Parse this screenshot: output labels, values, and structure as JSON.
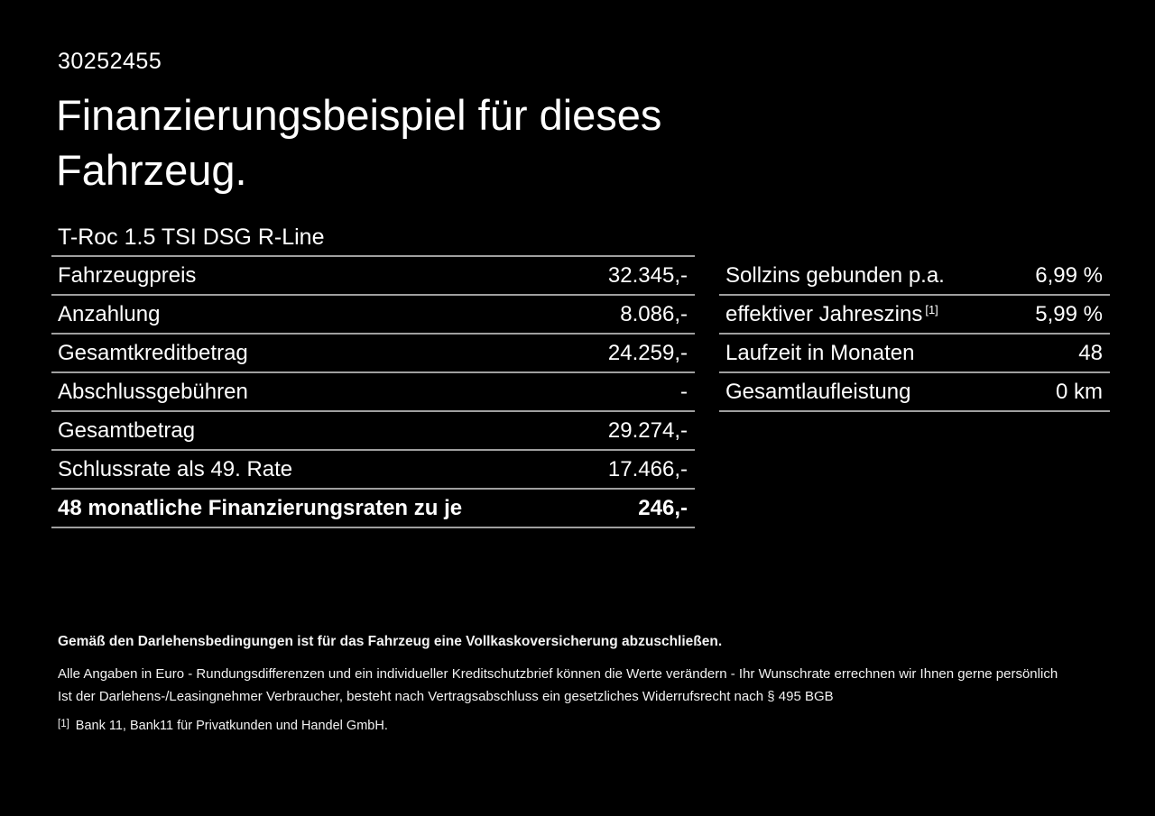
{
  "page": {
    "id_number": "30252455",
    "title_line1": "Finanzierungsbeispiel für dieses",
    "title_line2": "Fahrzeug.",
    "vehicle_model": "T-Roc 1.5 TSI DSG R-Line"
  },
  "finance_table": {
    "rows": [
      {
        "label": "Fahrzeugpreis",
        "value": "32.345,-"
      },
      {
        "label": "Anzahlung",
        "value": "8.086,-"
      },
      {
        "label": "Gesamtkreditbetrag",
        "value": "24.259,-"
      },
      {
        "label": "Abschlussgebühren",
        "value": "-"
      },
      {
        "label": "Gesamtbetrag",
        "value": "29.274,-"
      },
      {
        "label": "Schlussrate als 49. Rate",
        "value": "17.466,-"
      },
      {
        "label": "48 monatliche Finanzierungsraten zu je",
        "value": "246,-"
      }
    ]
  },
  "conditions_table": {
    "rows": [
      {
        "label": "Sollzins gebunden p.a.",
        "value": "6,99 %"
      },
      {
        "label": "effektiver Jahreszins",
        "footnote_marker": "[1]",
        "value": "5,99 %"
      },
      {
        "label": "Laufzeit in Monaten",
        "value": "48"
      },
      {
        "label": "Gesamtlaufleistung",
        "value": "0 km"
      }
    ]
  },
  "footer": {
    "bold_note": "Gemäß den Darlehensbedingungen ist für das Fahrzeug eine Vollkaskoversicherung abzuschließen.",
    "note_line1": "Alle Angaben in Euro - Rundungsdifferenzen und ein individueller Kreditschutzbrief können die Werte verändern - Ihr Wunschrate errechnen wir Ihnen gerne persönlich",
    "note_line2": "Ist der Darlehens-/Leasingnehmer Verbraucher, besteht nach Vertragsabschluss ein gesetzliches Widerrufsrecht nach § 495 BGB",
    "footnote_marker": "[1]",
    "footnote_text": "Bank 11, Bank11 für Privatkunden und Handel GmbH."
  },
  "colors": {
    "background": "#000000",
    "text": "#ffffff",
    "separator_line": "#9f9f9f"
  }
}
